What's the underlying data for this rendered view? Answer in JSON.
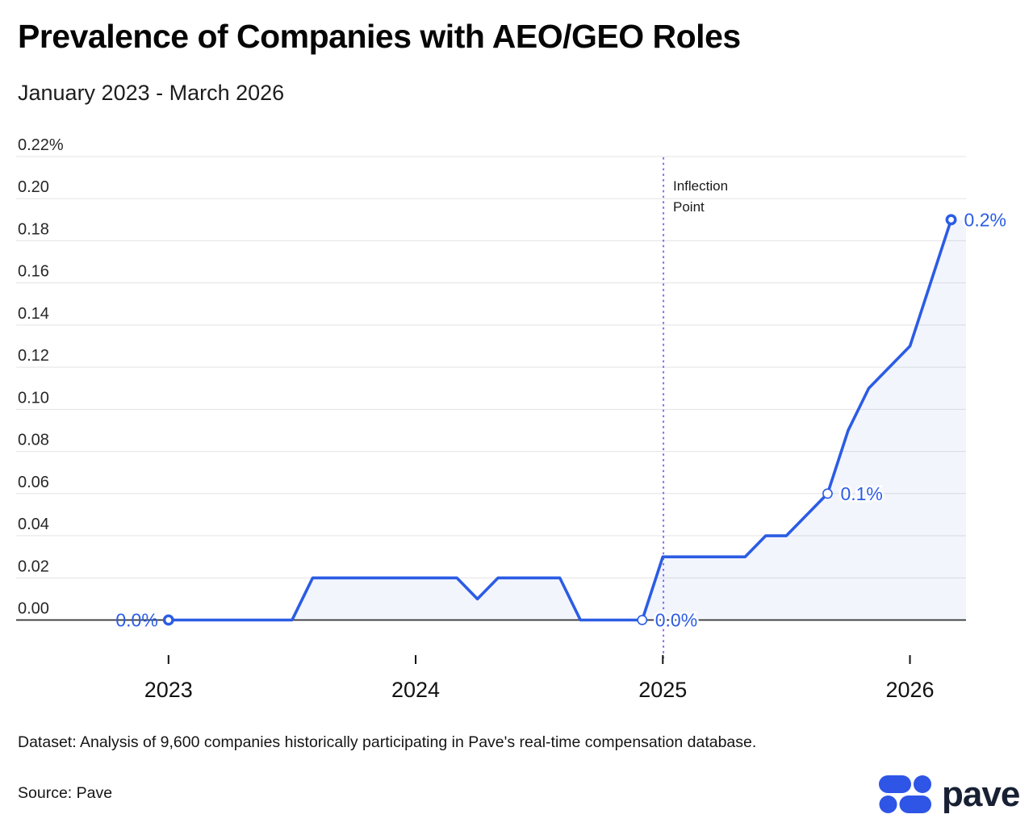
{
  "header": {
    "title": "Prevalence of Companies with AEO/GEO Roles",
    "subtitle": "January 2023 - March 2026"
  },
  "chart_data": {
    "type": "area",
    "title": "Prevalence of Companies with AEO/GEO Roles",
    "subtitle": "January 2023 - March 2026",
    "ylabel": "",
    "xlabel": "",
    "ylim": [
      0,
      0.22
    ],
    "grid": true,
    "legend_position": "none",
    "x": [
      "2023-01",
      "2023-02",
      "2023-03",
      "2023-04",
      "2023-05",
      "2023-06",
      "2023-07",
      "2023-08",
      "2023-09",
      "2023-10",
      "2023-11",
      "2023-12",
      "2024-01",
      "2024-02",
      "2024-03",
      "2024-04",
      "2024-05",
      "2024-06",
      "2024-07",
      "2024-08",
      "2024-09",
      "2024-10",
      "2024-11",
      "2024-12",
      "2025-01",
      "2025-02",
      "2025-03",
      "2025-04",
      "2025-05",
      "2025-06",
      "2025-07",
      "2025-08",
      "2025-09",
      "2025-10",
      "2025-11",
      "2025-12",
      "2026-01",
      "2026-02",
      "2026-03"
    ],
    "values": [
      0,
      0,
      0,
      0,
      0,
      0,
      0,
      0.02,
      0.02,
      0.02,
      0.02,
      0.02,
      0.02,
      0.02,
      0.02,
      0.01,
      0.02,
      0.02,
      0.02,
      0.02,
      0,
      0,
      0,
      0,
      0.03,
      0.03,
      0.03,
      0.03,
      0.03,
      0.04,
      0.04,
      0.05,
      0.06,
      0.09,
      0.11,
      0.12,
      0.13,
      0.16,
      0.19
    ],
    "yticks": [
      "0.00",
      "0.02",
      "0.04",
      "0.06",
      "0.08",
      "0.10",
      "0.12",
      "0.14",
      "0.16",
      "0.18",
      "0.20",
      "0.22%"
    ],
    "ytick_values": [
      0,
      0.02,
      0.04,
      0.06,
      0.08,
      0.1,
      0.12,
      0.14,
      0.16,
      0.18,
      0.2,
      0.22
    ],
    "xticks": [
      {
        "label": "2023",
        "month_index": 0
      },
      {
        "label": "2024",
        "month_index": 12
      },
      {
        "label": "2025",
        "month_index": 24
      },
      {
        "label": "2026",
        "month_index": 36
      }
    ],
    "annotations": {
      "inflection": {
        "label": "Inflection Point",
        "month_index": 24
      },
      "point_labels": [
        {
          "month_index": 0,
          "text": "0.0%",
          "side": "left",
          "marker": "bold"
        },
        {
          "month_index": 23,
          "text": "0.0%",
          "side": "right",
          "marker": "thin"
        },
        {
          "month_index": 32,
          "text": "0.1%",
          "side": "right",
          "marker": "thin"
        },
        {
          "month_index": 38,
          "text": "0.2%",
          "side": "right",
          "marker": "bold"
        }
      ]
    },
    "colors": {
      "line": "#2b5ce4",
      "fill": "rgba(43,92,228,0.06)",
      "inflection_line": "#8b6cf2",
      "point_label": "#2b5ce4",
      "gridline": "#e3e3e3",
      "axis_line": "#2f2f2f",
      "tick_text": "#272727",
      "year_text": "#121212"
    }
  },
  "footer": {
    "dataset_note": "Dataset: Analysis of 9,600 companies historically participating in Pave's real-time compensation database.",
    "source": "Source: Pave",
    "brand": "pave",
    "logo_color": "#2e55e5"
  }
}
